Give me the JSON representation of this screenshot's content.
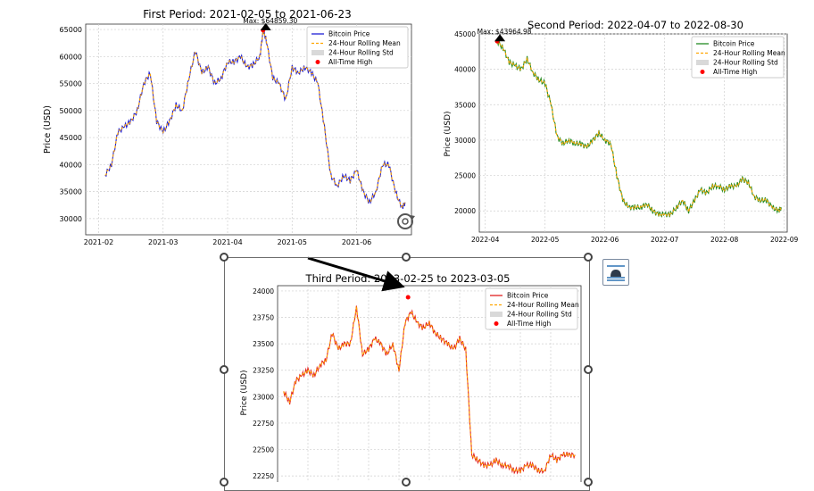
{
  "charts": [
    {
      "title": "First Period: 2021-02-05 to 2021-06-23",
      "ylabel": "Price (USD)",
      "xticks": [
        "2021-02",
        "2021-03",
        "2021-04",
        "2021-05",
        "2021-06"
      ],
      "yticks": [
        "65000",
        "60000",
        "55000",
        "50000",
        "45000",
        "40000",
        "35000",
        "30000"
      ],
      "max_label": "Max: $64859.30",
      "legend": [
        "Bitcoin Price",
        "24-Hour Rolling Mean",
        "24-Hour Rolling Std",
        "All-Time High"
      ]
    },
    {
      "title": "Second Period: 2022-04-07 to 2022-08-30",
      "ylabel": "Price (USD)",
      "xticks": [
        "2022-04",
        "2022-05",
        "2022-06",
        "2022-07",
        "2022-08",
        "2022-09"
      ],
      "yticks": [
        "45000",
        "40000",
        "35000",
        "30000",
        "25000",
        "20000"
      ],
      "max_label": "Max: $43964.98",
      "legend": [
        "Bitcoin Price",
        "24-Hour Rolling Mean",
        "24-Hour Rolling Std",
        "All-Time High"
      ]
    },
    {
      "title": "Third Period: 2023-02-25 to 2023-03-05",
      "ylabel": "Price (USD)",
      "yticks": [
        "24000",
        "23750",
        "23500",
        "23250",
        "23000",
        "22750",
        "22500",
        "22250"
      ],
      "legend": [
        "Bitcoin Price",
        "24-Hour Rolling Mean",
        "24-Hour Rolling Std",
        "All-Time High"
      ]
    }
  ],
  "chart_data": [
    {
      "type": "line",
      "title": "First Period: 2021-02-05 to 2021-06-23",
      "ylabel": "Price (USD)",
      "ylim": [
        27000,
        66000
      ],
      "xlim": [
        -0.2,
        4.85
      ],
      "x_tick_positions": [
        0,
        1,
        2,
        3,
        4
      ],
      "series": [
        {
          "name": "Bitcoin Price",
          "color": "#1f1fd6"
        },
        {
          "name": "24-Hour Rolling Mean",
          "color": "#ffa500"
        }
      ],
      "x": [
        0.1,
        0.2,
        0.3,
        0.4,
        0.5,
        0.6,
        0.7,
        0.8,
        0.9,
        1.0,
        1.1,
        1.2,
        1.3,
        1.4,
        1.5,
        1.6,
        1.7,
        1.8,
        1.9,
        2.0,
        2.1,
        2.2,
        2.3,
        2.4,
        2.5,
        2.55,
        2.6,
        2.7,
        2.8,
        2.9,
        3.0,
        3.1,
        3.2,
        3.3,
        3.4,
        3.5,
        3.6,
        3.7,
        3.8,
        3.9,
        4.0,
        4.1,
        4.2,
        4.3,
        4.4,
        4.5,
        4.6,
        4.7,
        4.75
      ],
      "y": [
        38000,
        40000,
        46000,
        47000,
        48000,
        50000,
        55000,
        57000,
        48000,
        46000,
        48000,
        51000,
        50000,
        56000,
        61000,
        57000,
        58000,
        55000,
        56000,
        59000,
        59000,
        60000,
        58000,
        58500,
        60000,
        64859,
        63000,
        56000,
        55000,
        52000,
        58000,
        57000,
        58000,
        57000,
        55000,
        47000,
        38000,
        36000,
        38000,
        37000,
        39000,
        35000,
        33000,
        35000,
        40000,
        40000,
        35000,
        32000,
        33000
      ],
      "max_point": {
        "x": 2.55,
        "y": 64859.3
      }
    },
    {
      "type": "line",
      "title": "Second Period: 2022-04-07 to 2022-08-30",
      "ylabel": "Price (USD)",
      "ylim": [
        17000,
        45000
      ],
      "xlim": [
        -0.1,
        5.05
      ],
      "x_tick_positions": [
        0,
        1,
        2,
        3,
        4,
        5
      ],
      "series": [
        {
          "name": "Bitcoin Price",
          "color": "#228b22"
        },
        {
          "name": "24-Hour Rolling Mean",
          "color": "#ffa500"
        }
      ],
      "x": [
        0.2,
        0.3,
        0.4,
        0.5,
        0.6,
        0.7,
        0.8,
        0.9,
        1.0,
        1.1,
        1.2,
        1.3,
        1.4,
        1.5,
        1.6,
        1.7,
        1.8,
        1.9,
        2.0,
        2.1,
        2.2,
        2.3,
        2.4,
        2.5,
        2.6,
        2.7,
        2.8,
        2.9,
        3.0,
        3.1,
        3.2,
        3.3,
        3.4,
        3.5,
        3.6,
        3.7,
        3.8,
        3.9,
        4.0,
        4.1,
        4.2,
        4.3,
        4.4,
        4.5,
        4.6,
        4.7,
        4.8,
        4.9,
        4.95
      ],
      "y": [
        43964.98,
        43000,
        41000,
        40500,
        40000,
        41500,
        39500,
        38500,
        38000,
        35000,
        30500,
        29500,
        30000,
        29500,
        29500,
        29000,
        30000,
        31000,
        30000,
        29500,
        25000,
        21500,
        20500,
        20500,
        20500,
        21000,
        20000,
        19500,
        19500,
        19500,
        20500,
        21500,
        20000,
        21500,
        23000,
        22500,
        23500,
        23500,
        23000,
        23500,
        23500,
        24500,
        24000,
        22000,
        21500,
        21500,
        20500,
        20000,
        20500
      ],
      "max_point": {
        "x": 0.2,
        "y": 43964.98
      }
    },
    {
      "type": "line",
      "title": "Third Period: 2023-02-25 to 2023-03-05",
      "ylabel": "Price (USD)",
      "ylim": [
        22150,
        24050
      ],
      "xlim": [
        0,
        100
      ],
      "series": [
        {
          "name": "Bitcoin Price",
          "color": "#e02020"
        },
        {
          "name": "24-Hour Rolling Mean",
          "color": "#ffa500"
        }
      ],
      "x": [
        2,
        4,
        6,
        8,
        10,
        12,
        14,
        16,
        18,
        20,
        22,
        24,
        26,
        28,
        30,
        32,
        34,
        36,
        38,
        40,
        42,
        44,
        46,
        48,
        50,
        52,
        54,
        56,
        58,
        60,
        62,
        64,
        66,
        68,
        70,
        72,
        74,
        76,
        78,
        80,
        82,
        84,
        86,
        88,
        90,
        92,
        94,
        96,
        98
      ],
      "y": [
        23050,
        22950,
        23150,
        23200,
        23250,
        23200,
        23300,
        23350,
        23600,
        23450,
        23500,
        23500,
        23850,
        23400,
        23450,
        23550,
        23500,
        23400,
        23500,
        23250,
        23700,
        23800,
        23700,
        23650,
        23700,
        23600,
        23550,
        23500,
        23450,
        23550,
        23450,
        22450,
        22400,
        22350,
        22350,
        22400,
        22350,
        22350,
        22300,
        22300,
        22350,
        22350,
        22300,
        22300,
        22450,
        22400,
        22450,
        22450,
        22450
      ],
      "max_point": {
        "x": 43,
        "y": 23940
      }
    }
  ]
}
